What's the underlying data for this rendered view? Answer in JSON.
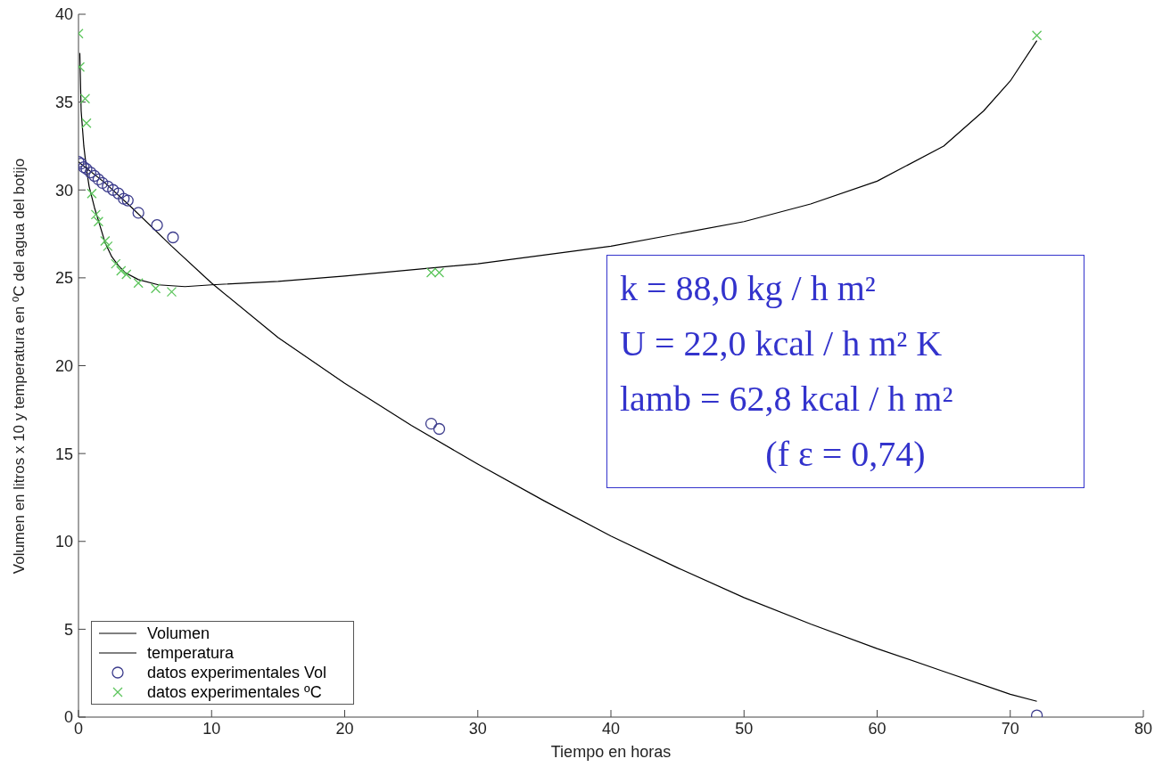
{
  "chart_data": {
    "type": "line",
    "xlabel": "Tiempo en horas",
    "ylabel": "Volumen en litros x 10 y temperatura en ºC del agua del botijo",
    "xlim": [
      0,
      80
    ],
    "xticks": [
      0,
      10,
      20,
      30,
      40,
      50,
      60,
      70,
      80
    ],
    "ylim": [
      0,
      40
    ],
    "yticks": [
      0,
      5,
      10,
      15,
      20,
      25,
      30,
      35,
      40
    ],
    "grid": false,
    "legend": "bottom left",
    "annotations": [
      "k = 88,0 kg / h m²",
      "U = 22,0 kcal / h m² K",
      "lamb = 62,8 kcal / h m²",
      "(f ε = 0,74)"
    ],
    "series": [
      {
        "name": "Volumen",
        "color": "#000000",
        "marker": "none",
        "line_style": "solid",
        "x": [
          0,
          2,
          4,
          7,
          10,
          15,
          20,
          25,
          30,
          35,
          40,
          45,
          50,
          55,
          60,
          65,
          70,
          72
        ],
        "values": [
          31.6,
          30.4,
          29.0,
          26.8,
          24.7,
          21.6,
          19.0,
          16.6,
          14.4,
          12.3,
          10.3,
          8.5,
          6.8,
          5.3,
          3.9,
          2.6,
          1.3,
          0.9
        ]
      },
      {
        "name": "temperatura",
        "color": "#000000",
        "marker": "none",
        "line_style": "solid",
        "x": [
          0.1,
          0.2,
          0.4,
          0.6,
          0.8,
          1.2,
          1.6,
          2,
          2.5,
          3,
          3.5,
          4.5,
          6,
          8,
          10,
          15,
          20,
          30,
          40,
          50,
          55,
          60,
          65,
          68,
          70,
          72
        ],
        "values": [
          37.8,
          34.5,
          32.5,
          31.2,
          30.2,
          29.0,
          28.0,
          27.0,
          26.2,
          25.7,
          25.3,
          24.9,
          24.6,
          24.5,
          24.6,
          24.8,
          25.1,
          25.8,
          26.8,
          28.2,
          29.2,
          30.5,
          32.5,
          34.5,
          36.2,
          38.5
        ]
      },
      {
        "name": "datos experimentales Vol",
        "type": "scatter",
        "color": "#3c3c8c",
        "marker": "circle",
        "x": [
          0,
          0.2,
          0.4,
          0.6,
          0.9,
          1.2,
          1.5,
          1.8,
          2.2,
          2.6,
          3.0,
          3.4,
          3.7,
          4.5,
          5.9,
          7.1,
          26.5,
          27.1,
          72
        ],
        "values": [
          31.6,
          31.5,
          31.3,
          31.2,
          31.0,
          30.8,
          30.6,
          30.4,
          30.2,
          30.0,
          29.8,
          29.5,
          29.4,
          28.7,
          28.0,
          27.3,
          16.7,
          16.4,
          0.1
        ]
      },
      {
        "name": "datos experimentales ºC",
        "type": "scatter",
        "color": "#5cc55c",
        "marker": "cross",
        "x": [
          0,
          0.1,
          0.5,
          0.6,
          1.0,
          1.3,
          1.5,
          2.0,
          2.2,
          2.8,
          3.2,
          3.6,
          4.5,
          5.8,
          7.0,
          26.5,
          27.1,
          72
        ],
        "values": [
          38.9,
          37.0,
          35.2,
          33.8,
          29.8,
          28.6,
          28.2,
          27.1,
          26.8,
          25.8,
          25.4,
          25.2,
          24.7,
          24.4,
          24.2,
          25.3,
          25.3,
          38.8
        ]
      }
    ]
  }
}
